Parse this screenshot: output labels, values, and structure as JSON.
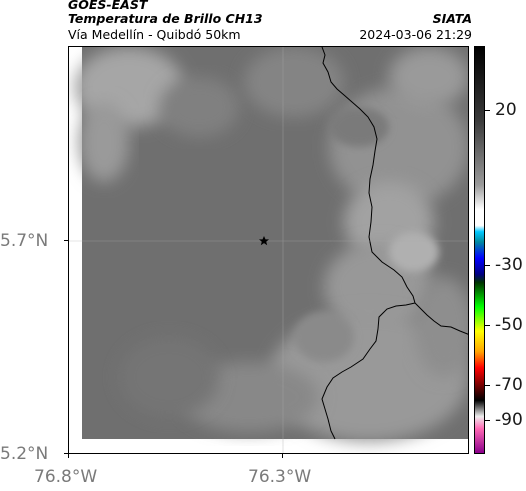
{
  "header": {
    "satellite": "GOES-EAST",
    "product": "Temperatura de Brillo CH13",
    "agency": "SIATA",
    "region": "Vía Medellín - Quibdó 50km",
    "datetime": "2024-03-06 21:29"
  },
  "axes": {
    "lat_labels": [
      "5.7°N",
      "5.2°N"
    ],
    "lon_labels": [
      "76.8°W",
      "76.3°W"
    ]
  },
  "colorbar": {
    "labels": [
      "20",
      "-30",
      "-50",
      "-70",
      "-90"
    ],
    "colors": [
      "#000000",
      "#ffffff",
      "#00c8ff",
      "#0000ff",
      "#00ff00",
      "#ffff00",
      "#ff0000",
      "#000000",
      "#ff69b4",
      "#8b008b"
    ]
  },
  "map": {
    "marker_icon": "star-icon",
    "colors": {
      "cloud_base": "#6e6e6e",
      "cloud_light": "#a8a8a8",
      "boundary": "#000000"
    }
  }
}
